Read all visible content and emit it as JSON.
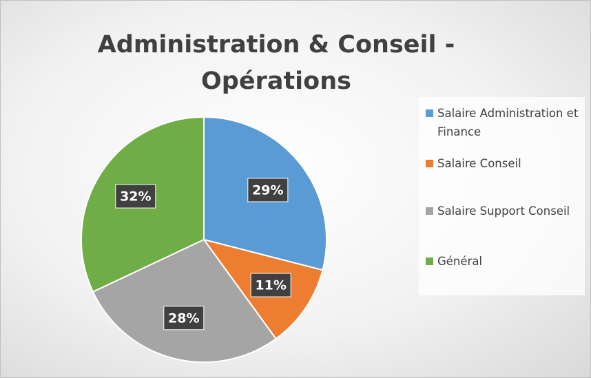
{
  "chart_data": {
    "type": "pie",
    "title": "Administration & Conseil - Opérations",
    "categories": [
      "Salaire Administration et Finance",
      "Salaire Conseil",
      "Salaire Support Conseil",
      "Général"
    ],
    "values": [
      29,
      11,
      28,
      32
    ],
    "value_labels": [
      "29%",
      "11%",
      "28%",
      "32%"
    ],
    "colors": [
      "#5b9bd5",
      "#ed7d31",
      "#a5a5a5",
      "#70ad47"
    ],
    "legend": "right"
  }
}
